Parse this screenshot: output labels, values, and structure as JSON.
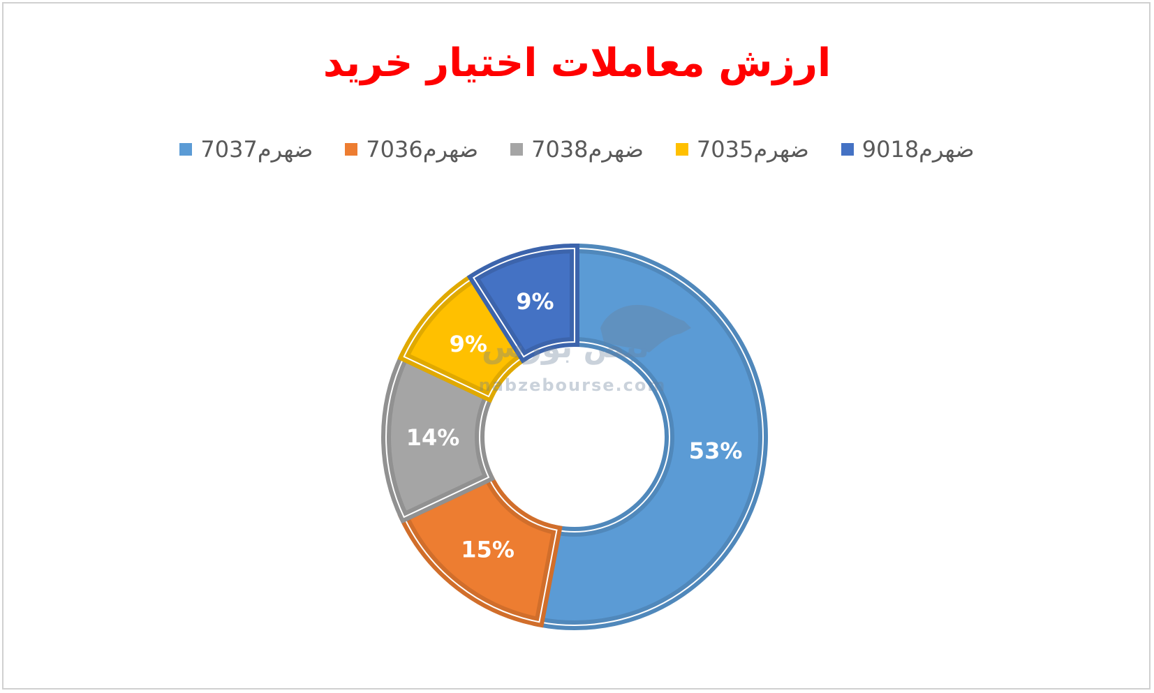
{
  "chart_data": {
    "type": "pie",
    "variant": "doughnut",
    "title": "ارزش معاملات اختیار خرید",
    "legend_position": "top",
    "series": [
      {
        "name": "ضهرم7037",
        "value": 53,
        "label": "53%",
        "color": "#5b9bd5"
      },
      {
        "name": "ضهرم7036",
        "value": 15,
        "label": "15%",
        "color": "#ed7d31"
      },
      {
        "name": "ضهرم7038",
        "value": 14,
        "label": "14%",
        "color": "#a5a5a5"
      },
      {
        "name": "ضهرم7035",
        "value": 9,
        "label": "9%",
        "color": "#ffc000"
      },
      {
        "name": "ضهرم9018",
        "value": 9,
        "label": "9%",
        "color": "#4472c4"
      }
    ]
  },
  "watermark": {
    "logo_text": "نبض بورس",
    "url": "nabzebourse.com"
  }
}
